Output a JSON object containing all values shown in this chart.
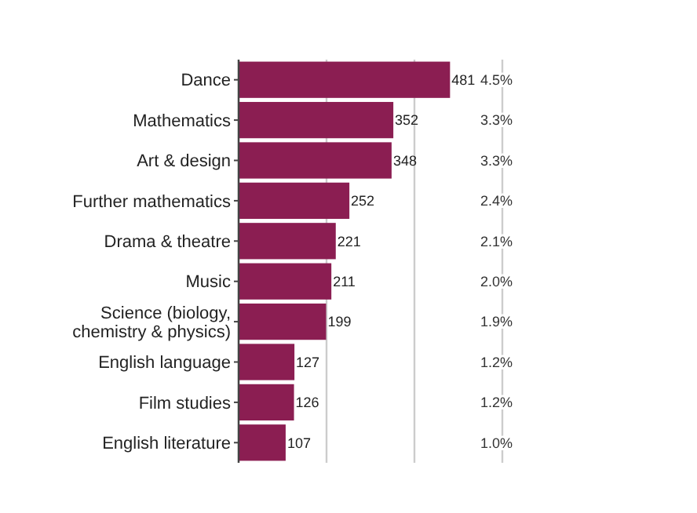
{
  "chart_data": {
    "type": "bar",
    "orientation": "horizontal",
    "categories": [
      "Dance",
      "Mathematics",
      "Art & design",
      "Further mathematics",
      "Drama & theatre",
      "Music",
      "Science (biology, chemistry & physics)",
      "English language",
      "Film studies",
      "English literature"
    ],
    "values": [
      481,
      352,
      348,
      252,
      221,
      211,
      199,
      127,
      126,
      107
    ],
    "color": "#8b1e52",
    "data_labels": true,
    "xlim": [
      0,
      600
    ],
    "xticks": [
      {
        "value": 0,
        "label": null
      },
      {
        "value": 200,
        "label": null
      },
      {
        "value": 400,
        "label": null
      },
      {
        "value": 600,
        "label": null
      }
    ],
    "grid": "x",
    "tick_labels": "y",
    "annotations": [
      "4.5%",
      "3.3%",
      "3.3%",
      "2.4%",
      "2.1%",
      "2.0%",
      "1.9%",
      "1.2%",
      "1.2%",
      "1.0%"
    ]
  }
}
